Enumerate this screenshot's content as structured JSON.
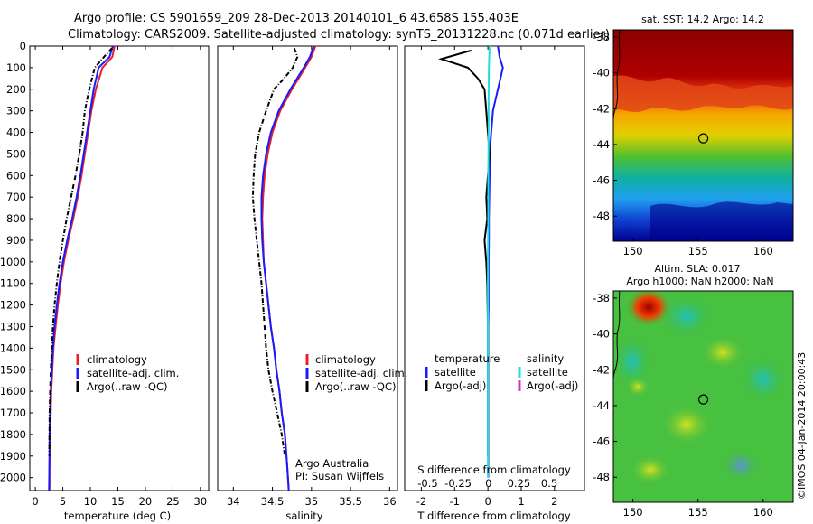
{
  "figure": {
    "title_line1": "Argo profile: CS 5901659_209 28-Dec-2013 20140101_6 43.658S 155.403E",
    "title_line2": "Climatology: CARS2009. Satellite-adjusted climatology: synTS_20131228.nc (0.071d earlier)",
    "credit": "Argo Australia",
    "pi": "PI: Susan Wijffels",
    "imos_stamp": "©IMOS 04-Jan-2014 20:00:43"
  },
  "colors": {
    "climatology": "#e8202a",
    "satellite": "#1a1aff",
    "argo": "#000000",
    "sal_satellite": "#22dddd",
    "sal_argo": "#cc33cc"
  },
  "chart_data": [
    {
      "type": "line",
      "id": "temperature",
      "xlabel": "temperature (deg C)",
      "ylabel": "",
      "xlim": [
        -1,
        31.5
      ],
      "ylim": [
        2060,
        0
      ],
      "xticks": [
        0,
        5,
        10,
        15,
        20,
        25,
        30
      ],
      "yticks": [
        0,
        100,
        200,
        300,
        400,
        500,
        600,
        700,
        800,
        900,
        1000,
        1100,
        1200,
        1300,
        1400,
        1500,
        1600,
        1700,
        1800,
        1900,
        2000
      ],
      "legend": [
        "climatology",
        "satellite-adj. clim.",
        "Argo(..raw -QC)"
      ],
      "series": [
        {
          "name": "climatology",
          "color": "#e8202a",
          "x": [
            14.4,
            14.0,
            12.2,
            11.0,
            10.2,
            9.6,
            9.0,
            8.4,
            7.7,
            6.9,
            6.0,
            5.2,
            4.6,
            4.1,
            3.7,
            3.3,
            3.1,
            2.9,
            2.8,
            2.7,
            2.6,
            2.6
          ],
          "y": [
            0,
            50,
            100,
            200,
            300,
            400,
            500,
            600,
            700,
            800,
            900,
            1000,
            1100,
            1200,
            1300,
            1400,
            1500,
            1600,
            1700,
            1800,
            1950,
            2060
          ]
        },
        {
          "name": "satellite-adj. clim.",
          "color": "#1a1aff",
          "x": [
            14.1,
            13.5,
            11.5,
            10.6,
            10.0,
            9.4,
            8.8,
            8.2,
            7.5,
            6.7,
            5.8,
            5.0,
            4.4,
            3.9,
            3.5,
            3.2,
            3.0,
            2.8,
            2.7,
            2.6,
            2.55,
            2.5
          ],
          "y": [
            0,
            50,
            100,
            200,
            300,
            400,
            500,
            600,
            700,
            800,
            900,
            1000,
            1100,
            1200,
            1300,
            1400,
            1500,
            1600,
            1700,
            1800,
            1950,
            2060
          ]
        },
        {
          "name": "Argo(..raw -QC)",
          "color": "#000000",
          "dashed": true,
          "x": [
            13.9,
            13.2,
            12.5,
            10.8,
            9.8,
            9.0,
            8.6,
            8.0,
            7.3,
            6.5,
            5.7,
            5.0,
            4.4,
            3.9,
            3.5,
            3.2,
            3.0,
            2.8,
            2.7,
            2.6,
            2.55
          ],
          "y": [
            10,
            30,
            50,
            100,
            200,
            300,
            400,
            500,
            600,
            700,
            800,
            900,
            1000,
            1100,
            1200,
            1300,
            1400,
            1500,
            1600,
            1700,
            1900
          ]
        }
      ]
    },
    {
      "type": "line",
      "id": "salinity",
      "xlabel": "salinity",
      "ylabel": "",
      "xlim": [
        33.8,
        36.1
      ],
      "ylim": [
        2060,
        0
      ],
      "xticks": [
        34,
        34.5,
        35,
        35.5,
        36
      ],
      "legend": [
        "climatology",
        "satellite-adj. clim.",
        "Argo(..raw -QC)"
      ],
      "series": [
        {
          "name": "climatology",
          "color": "#e8202a",
          "x": [
            35.05,
            35.0,
            34.92,
            34.75,
            34.6,
            34.5,
            34.44,
            34.4,
            34.38,
            34.37,
            34.38,
            34.39,
            34.42,
            34.45,
            34.48,
            34.52,
            34.55,
            34.59,
            34.62,
            34.66,
            34.69,
            34.71
          ],
          "y": [
            0,
            50,
            100,
            200,
            300,
            400,
            500,
            600,
            700,
            800,
            900,
            1000,
            1100,
            1200,
            1300,
            1400,
            1500,
            1600,
            1700,
            1800,
            1950,
            2060
          ]
        },
        {
          "name": "satellite-adj. clim.",
          "color": "#1a1aff",
          "x": [
            35.03,
            34.98,
            34.9,
            34.73,
            34.58,
            34.48,
            34.42,
            34.38,
            34.36,
            34.36,
            34.37,
            34.39,
            34.42,
            34.45,
            34.48,
            34.52,
            34.55,
            34.59,
            34.62,
            34.66,
            34.69,
            34.71
          ],
          "y": [
            0,
            50,
            100,
            200,
            300,
            400,
            500,
            600,
            700,
            800,
            900,
            1000,
            1100,
            1200,
            1300,
            1400,
            1500,
            1600,
            1700,
            1800,
            1950,
            2060
          ]
        },
        {
          "name": "Argo(..raw -QC)",
          "color": "#000000",
          "dashed": true,
          "x": [
            34.78,
            34.82,
            34.76,
            34.65,
            34.52,
            34.42,
            34.33,
            34.28,
            34.26,
            34.25,
            34.27,
            34.3,
            34.33,
            34.36,
            34.38,
            34.4,
            34.42,
            34.45,
            34.5,
            34.56,
            34.62,
            34.66
          ],
          "y": [
            10,
            50,
            100,
            150,
            200,
            300,
            400,
            500,
            600,
            700,
            800,
            900,
            1000,
            1100,
            1200,
            1300,
            1400,
            1500,
            1600,
            1700,
            1800,
            1900
          ]
        }
      ]
    },
    {
      "type": "line",
      "id": "difference",
      "xlabel": "T difference from climatology",
      "x2label": "S difference from climatology",
      "xlim": [
        -2.5,
        2.9
      ],
      "ylim": [
        2060,
        0
      ],
      "xticks": [
        "-2",
        "-1",
        "0",
        "1",
        "2"
      ],
      "xticks_values": [
        -2,
        -1,
        0,
        1,
        2
      ],
      "x2ticks": [
        "-0.5",
        "-0.25",
        "0",
        "0.25",
        "0.5"
      ],
      "x2ticks_values": [
        -0.5,
        -0.25,
        0,
        0.25,
        0.5
      ],
      "legend_left_title": "temperature",
      "legend_right_title": "salinity",
      "legend": [
        "satellite",
        "Argo(-adj)",
        "satellite",
        "Argo(-adj)"
      ],
      "series": [
        {
          "name": "satellite",
          "color": "#1a1aff",
          "x": [
            0.3,
            0.35,
            0.45,
            0.3,
            0.15,
            0.1,
            0.05,
            0.05,
            0.04,
            0.03,
            0.03,
            0.02,
            0.02,
            0.02,
            0.01,
            0.01,
            0.01,
            0.01,
            0.01
          ],
          "y": [
            0,
            50,
            100,
            200,
            300,
            400,
            500,
            600,
            700,
            800,
            900,
            1000,
            1100,
            1200,
            1300,
            1400,
            1600,
            1800,
            2000
          ]
        },
        {
          "name": "Argo(-adj)",
          "color": "#000000",
          "x": [
            -0.5,
            -1.4,
            -0.6,
            -0.3,
            -0.1,
            -0.05,
            0.0,
            0.05,
            -0.05,
            -0.02,
            -0.1,
            -0.05,
            -0.02,
            0.0,
            0.0,
            0.0,
            0.0
          ],
          "y": [
            20,
            60,
            100,
            150,
            200,
            300,
            400,
            500,
            700,
            800,
            900,
            1000,
            1100,
            1300,
            1500,
            1700,
            1900
          ]
        },
        {
          "name": "satellite",
          "color": "#22dddd",
          "x": [
            0.05,
            0.03,
            0.02,
            0.02,
            0.01,
            0.01,
            0.0,
            0.0,
            0.0,
            0.0,
            0.0
          ],
          "y": [
            0,
            100,
            200,
            400,
            600,
            800,
            1000,
            1200,
            1400,
            1700,
            2000
          ]
        },
        {
          "name": "Argo(-adj)",
          "color": "#cc33cc",
          "x": [],
          "y": []
        }
      ]
    },
    {
      "type": "heatmap",
      "id": "sst-map",
      "title": "sat. SST: 14.2 Argo: 14.2",
      "xlim": [
        148.5,
        162.3
      ],
      "ylim": [
        -49.4,
        -37.6
      ],
      "xticks": [
        150,
        155,
        160
      ],
      "yticks": [
        -38,
        -40,
        -42,
        -44,
        -46,
        -48
      ],
      "marker": {
        "lon": 155.403,
        "lat": -43.658
      }
    },
    {
      "type": "heatmap",
      "id": "sla-map",
      "title_line1": "Altim. SLA: 0.017",
      "title_line2": "Argo h1000: NaN h2000: NaN",
      "xlim": [
        148.5,
        162.3
      ],
      "ylim": [
        -49.4,
        -37.6
      ],
      "xticks": [
        150,
        155,
        160
      ],
      "yticks": [
        -38,
        -40,
        -42,
        -44,
        -46,
        -48
      ],
      "marker": {
        "lon": 155.403,
        "lat": -43.658
      }
    }
  ]
}
